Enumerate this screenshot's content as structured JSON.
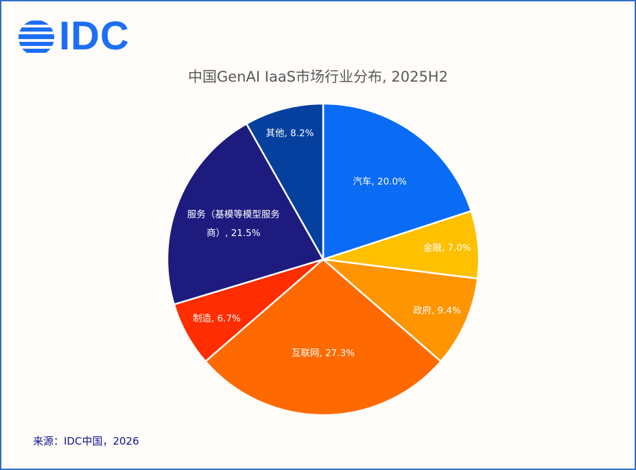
{
  "brand": {
    "logo_text": "IDC",
    "logo_color": "#1d6ef5"
  },
  "chart_data": {
    "type": "pie",
    "title": "中国GenAI IaaS市场行业分布, 2025H2",
    "unit": "%",
    "start_angle_deg": 0,
    "direction": "clockwise",
    "slices": [
      {
        "label": "汽车, 20.0%",
        "name": "汽车",
        "value": 20.0,
        "color": "#0a6cf5"
      },
      {
        "label": "金融, 7.0%",
        "name": "金融",
        "value": 7.0,
        "color": "#ffc000"
      },
      {
        "label": "政府, 9.4%",
        "name": "政府",
        "value": 9.4,
        "color": "#ff9500"
      },
      {
        "label": "互联网, 27.3%",
        "name": "互联网",
        "value": 27.3,
        "color": "#ff6a00"
      },
      {
        "label": "制造, 6.7%",
        "name": "制造",
        "value": 6.7,
        "color": "#ff2d00"
      },
      {
        "label_lines": [
          "服务（基模等模型服务",
          "商）, 21.5%"
        ],
        "name": "服务（基模等模型服务商）",
        "value": 21.5,
        "color": "#1e1b7f"
      },
      {
        "label": "其他, 8.2%",
        "name": "其他",
        "value": 8.2,
        "color": "#05409f"
      }
    ]
  },
  "footer": {
    "source": "来源：IDC中国，2026"
  },
  "colors": {
    "frame_border": "#2f6fc9",
    "background": "#fffcf9",
    "title": "#595959",
    "source": "#12128f"
  }
}
